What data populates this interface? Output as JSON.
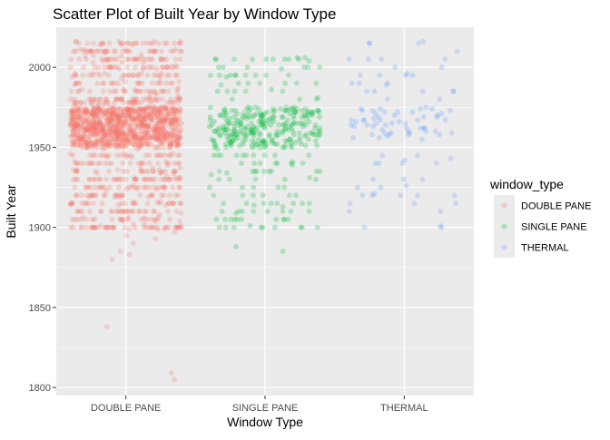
{
  "chart_data": {
    "type": "scatter",
    "title": "Scatter Plot of Built Year by Window Type",
    "xlabel": "Window Type",
    "ylabel": "Built Year",
    "categories": [
      "DOUBLE PANE",
      "SINGLE PANE",
      "THERMAL"
    ],
    "ylim": [
      1795,
      2025
    ],
    "yticks": [
      1800,
      1850,
      1900,
      1950,
      2000
    ],
    "grid": true,
    "point_alpha": 0.25,
    "jitter_width": 0.4,
    "legend": {
      "title": "window_type",
      "position": "right",
      "entries": [
        "DOUBLE PANE",
        "SINGLE PANE",
        "THERMAL"
      ]
    },
    "colors": {
      "DOUBLE PANE": "#F8766D",
      "SINGLE PANE": "#00BA38",
      "THERMAL": "#619CFF",
      "panel_background": "#EBEBEB",
      "grid": "#FFFFFF"
    },
    "series": [
      {
        "name": "DOUBLE PANE",
        "dense_range": [
          1950,
          1975
        ],
        "dense_count": 900,
        "banded_years": [
          1900,
          1905,
          1910,
          1915,
          1920,
          1925,
          1930,
          1935,
          1940,
          1945,
          1978,
          1980,
          1985,
          1990,
          1995,
          2000,
          2005,
          2010,
          2015
        ],
        "banded_count": 620,
        "outliers": [
          1838,
          1805,
          1809,
          1880,
          1883,
          1885,
          1890,
          1893,
          1895,
          1897
        ]
      },
      {
        "name": "SINGLE PANE",
        "dense_range": [
          1950,
          1975
        ],
        "dense_count": 260,
        "banded_years": [
          1900,
          1905,
          1910,
          1915,
          1920,
          1925,
          1930,
          1935,
          1940,
          1945,
          1980,
          1985,
          1990,
          1995,
          2000,
          2005
        ],
        "banded_count": 130,
        "outliers": [
          1885,
          1888,
          2004,
          2006
        ]
      },
      {
        "name": "THERMAL",
        "dense_range": [
          1955,
          1975
        ],
        "dense_count": 55,
        "banded_years": [
          1900,
          1910,
          1915,
          1920,
          1925,
          1930,
          1940,
          1945,
          1980,
          1985,
          1990,
          1995,
          2000,
          2005,
          2010,
          2015
        ],
        "banded_count": 55,
        "outliers": []
      }
    ]
  }
}
